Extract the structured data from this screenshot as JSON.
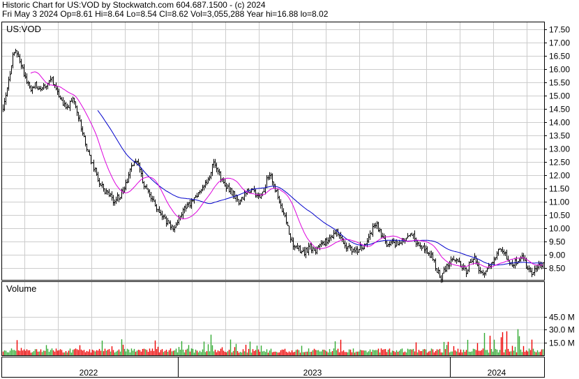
{
  "header": {
    "line1": "Historic Chart for US:VOD by Stockwatch.com 604.687.1500 - (c) 2024",
    "line2": "Fri May  3 2024  Op=8.61  Hi=8.64  Lo=8.54  Cl=8.62  Vol=3,055,288  Year hi=16.88  lo=8.02"
  },
  "chart_data": {
    "type": "line",
    "title": "US:VOD",
    "price_axis": {
      "ylim": [
        8.05,
        17.8
      ],
      "ticks": [
        "17.50",
        "17.00",
        "16.50",
        "16.00",
        "15.50",
        "15.00",
        "14.50",
        "14.00",
        "13.50",
        "13.00",
        "12.50",
        "12.00",
        "11.50",
        "11.00",
        "10.50",
        "10.00",
        "9.50",
        "9.00",
        "8.50"
      ]
    },
    "volume_panel": {
      "label": "Volume",
      "ticks": [
        "45.0 M",
        "30.0 M",
        "15.0 M"
      ]
    },
    "x_labels": [
      "2022",
      "2023",
      "2024"
    ],
    "colors": {
      "up_volume": "#33aa33",
      "down_volume": "#ee0000",
      "ma_short": "#dd00dd",
      "ma_long": "#0000cc",
      "grid": "#cccccc",
      "price_bar": "#000000"
    },
    "anchors": [
      [
        0,
        14.6
      ],
      [
        8,
        15.6
      ],
      [
        14,
        16.5
      ],
      [
        18,
        16.8
      ],
      [
        26,
        16.2
      ],
      [
        34,
        15.5
      ],
      [
        40,
        15.3
      ],
      [
        46,
        15.4
      ],
      [
        54,
        15.3
      ],
      [
        62,
        15.4
      ],
      [
        70,
        15.6
      ],
      [
        76,
        15.3
      ],
      [
        84,
        14.8
      ],
      [
        92,
        14.5
      ],
      [
        100,
        14.9
      ],
      [
        104,
        14.6
      ],
      [
        110,
        14.0
      ],
      [
        116,
        13.4
      ],
      [
        122,
        12.8
      ],
      [
        130,
        12.3
      ],
      [
        138,
        11.7
      ],
      [
        146,
        11.4
      ],
      [
        152,
        11.3
      ],
      [
        158,
        11.0
      ],
      [
        166,
        11.2
      ],
      [
        174,
        11.5
      ],
      [
        180,
        12.0
      ],
      [
        186,
        12.4
      ],
      [
        192,
        12.6
      ],
      [
        198,
        12.0
      ],
      [
        204,
        11.5
      ],
      [
        212,
        11.2
      ],
      [
        220,
        10.8
      ],
      [
        228,
        10.5
      ],
      [
        236,
        10.2
      ],
      [
        242,
        10.0
      ],
      [
        248,
        10.1
      ],
      [
        254,
        10.4
      ],
      [
        260,
        10.7
      ],
      [
        268,
        10.9
      ],
      [
        276,
        11.2
      ],
      [
        284,
        11.5
      ],
      [
        290,
        11.7
      ],
      [
        296,
        12.0
      ],
      [
        302,
        12.5
      ],
      [
        308,
        12.2
      ],
      [
        314,
        11.8
      ],
      [
        320,
        11.6
      ],
      [
        326,
        11.4
      ],
      [
        332,
        11.2
      ],
      [
        338,
        11.0
      ],
      [
        344,
        11.2
      ],
      [
        350,
        11.4
      ],
      [
        356,
        11.5
      ],
      [
        362,
        11.3
      ],
      [
        368,
        11.2
      ],
      [
        374,
        11.4
      ],
      [
        380,
        12.0
      ],
      [
        384,
        12.0
      ],
      [
        390,
        11.5
      ],
      [
        396,
        11.1
      ],
      [
        400,
        10.7
      ],
      [
        404,
        10.5
      ],
      [
        410,
        9.8
      ],
      [
        416,
        9.4
      ],
      [
        424,
        9.2
      ],
      [
        432,
        9.1
      ],
      [
        440,
        9.3
      ],
      [
        448,
        9.1
      ],
      [
        456,
        9.4
      ],
      [
        464,
        9.5
      ],
      [
        472,
        9.7
      ],
      [
        478,
        10.0
      ],
      [
        484,
        9.6
      ],
      [
        492,
        9.3
      ],
      [
        500,
        9.2
      ],
      [
        508,
        9.2
      ],
      [
        516,
        9.3
      ],
      [
        524,
        9.6
      ],
      [
        530,
        10.0
      ],
      [
        536,
        10.1
      ],
      [
        542,
        9.8
      ],
      [
        548,
        9.4
      ],
      [
        556,
        9.5
      ],
      [
        564,
        9.4
      ],
      [
        572,
        9.5
      ],
      [
        580,
        9.6
      ],
      [
        586,
        9.8
      ],
      [
        592,
        9.5
      ],
      [
        600,
        9.3
      ],
      [
        608,
        9.1
      ],
      [
        616,
        8.9
      ],
      [
        622,
        8.4
      ],
      [
        628,
        8.1
      ],
      [
        634,
        8.5
      ],
      [
        640,
        8.7
      ],
      [
        648,
        8.8
      ],
      [
        656,
        8.6
      ],
      [
        664,
        8.4
      ],
      [
        670,
        8.7
      ],
      [
        676,
        8.9
      ],
      [
        682,
        8.4
      ],
      [
        688,
        8.2
      ],
      [
        694,
        8.5
      ],
      [
        700,
        8.7
      ],
      [
        706,
        9.0
      ],
      [
        712,
        9.2
      ],
      [
        718,
        9.1
      ],
      [
        724,
        8.8
      ],
      [
        730,
        8.6
      ],
      [
        738,
        8.8
      ],
      [
        744,
        9.0
      ],
      [
        750,
        8.6
      ],
      [
        756,
        8.3
      ],
      [
        762,
        8.4
      ],
      [
        768,
        8.6
      ],
      [
        774,
        8.62
      ]
    ]
  }
}
